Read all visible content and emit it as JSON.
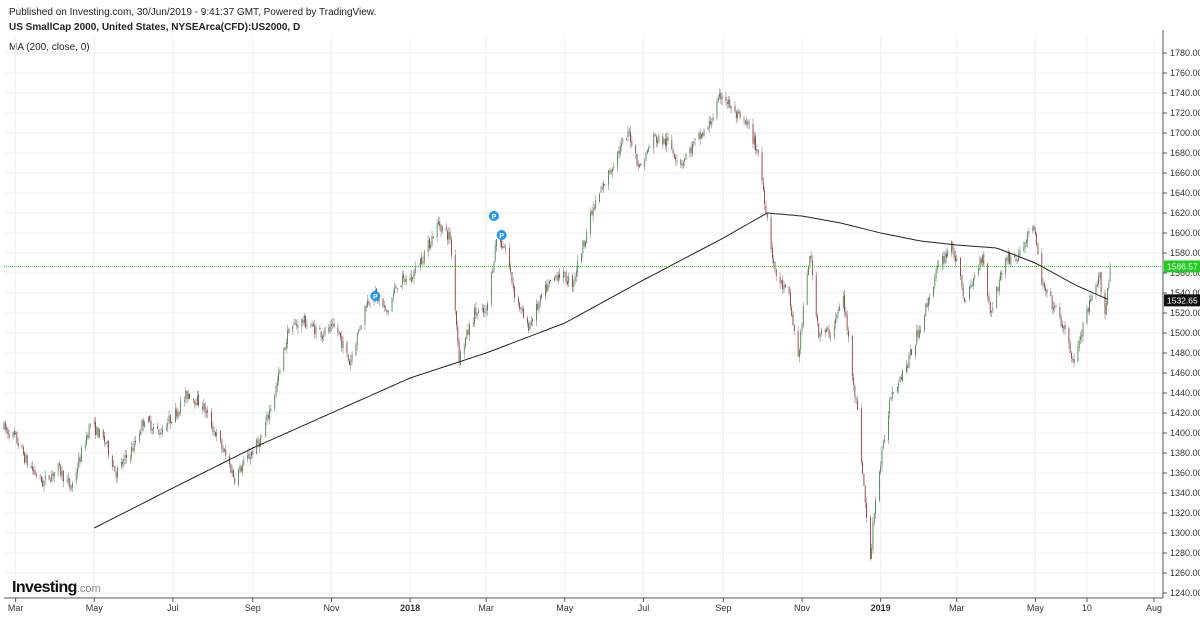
{
  "header": {
    "published": "Published on Investing.com, 30/Jun/2019 - 9:41:37 GMT, Powered by TradingView.",
    "symbol": "US SmallCap 2000, United States, NYSEArca(CFD):US2000, D",
    "indicator": "MA (200, close, 0)"
  },
  "logo": {
    "main": "Investing",
    "suffix": ".com"
  },
  "colors": {
    "up": "#2e7d32",
    "down": "#8b1a1a",
    "ma": "#222222",
    "last_price": "#22cc22",
    "ma_label_bg": "#111111",
    "marker": "#2196f3",
    "grid": "#efefef"
  },
  "chart_data": {
    "type": "candlestick",
    "title": "US SmallCap 2000, United States, NYSEArca(CFD):US2000, D",
    "indicator_name": "MA (200, close, 0)",
    "x_tick_labels": [
      "Mar",
      "May",
      "Jul",
      "Sep",
      "Nov",
      "2018",
      "Mar",
      "May",
      "Jul",
      "Sep",
      "Nov",
      "2019",
      "Mar",
      "May",
      "10",
      "Aug"
    ],
    "y_ticks": [
      1240,
      1260,
      1280,
      1300,
      1320,
      1340,
      1360,
      1380,
      1400,
      1420,
      1440,
      1460,
      1480,
      1500,
      1520,
      1540,
      1560,
      1580,
      1600,
      1620,
      1640,
      1660,
      1680,
      1700,
      1720,
      1740,
      1760,
      1780
    ],
    "ylim": [
      1235,
      1795
    ],
    "grid": true,
    "last_price": 1566.57,
    "last_price_label": "1566.57",
    "ma_last": 1532.65,
    "ma_last_label": "1532.65",
    "price_path": [
      [
        "2017-02-20",
        1405
      ],
      [
        "2017-03-01",
        1395
      ],
      [
        "2017-03-10",
        1370
      ],
      [
        "2017-03-22",
        1350
      ],
      [
        "2017-04-03",
        1365
      ],
      [
        "2017-04-13",
        1345
      ],
      [
        "2017-04-28",
        1410
      ],
      [
        "2017-05-10",
        1390
      ],
      [
        "2017-05-18",
        1360
      ],
      [
        "2017-05-31",
        1385
      ],
      [
        "2017-06-09",
        1415
      ],
      [
        "2017-06-20",
        1400
      ],
      [
        "2017-07-03",
        1420
      ],
      [
        "2017-07-13",
        1440
      ],
      [
        "2017-07-24",
        1428
      ],
      [
        "2017-08-10",
        1380
      ],
      [
        "2017-08-18",
        1355
      ],
      [
        "2017-08-28",
        1375
      ],
      [
        "2017-09-08",
        1395
      ],
      [
        "2017-09-20",
        1450
      ],
      [
        "2017-09-29",
        1505
      ],
      [
        "2017-10-10",
        1512
      ],
      [
        "2017-10-24",
        1500
      ],
      [
        "2017-11-05",
        1505
      ],
      [
        "2017-11-15",
        1470
      ],
      [
        "2017-11-28",
        1530
      ],
      [
        "2017-12-04",
        1540
      ],
      [
        "2017-12-14",
        1520
      ],
      [
        "2017-12-22",
        1550
      ],
      [
        "2018-01-02",
        1555
      ],
      [
        "2018-01-16",
        1590
      ],
      [
        "2018-01-23",
        1610
      ],
      [
        "2018-02-01",
        1595
      ],
      [
        "2018-02-08",
        1475
      ],
      [
        "2018-02-20",
        1520
      ],
      [
        "2018-03-01",
        1520
      ],
      [
        "2018-03-09",
        1595
      ],
      [
        "2018-03-16",
        1585
      ],
      [
        "2018-03-23",
        1540
      ],
      [
        "2018-04-02",
        1505
      ],
      [
        "2018-04-17",
        1545
      ],
      [
        "2018-04-26",
        1560
      ],
      [
        "2018-05-07",
        1550
      ],
      [
        "2018-05-22",
        1620
      ],
      [
        "2018-06-11",
        1680
      ],
      [
        "2018-06-20",
        1700
      ],
      [
        "2018-06-28",
        1665
      ],
      [
        "2018-07-09",
        1695
      ],
      [
        "2018-07-20",
        1690
      ],
      [
        "2018-07-30",
        1670
      ],
      [
        "2018-08-10",
        1690
      ],
      [
        "2018-08-20",
        1705
      ],
      [
        "2018-08-31",
        1740
      ],
      [
        "2018-09-10",
        1718
      ],
      [
        "2018-09-21",
        1705
      ],
      [
        "2018-09-28",
        1680
      ],
      [
        "2018-10-11",
        1560
      ],
      [
        "2018-10-22",
        1535
      ],
      [
        "2018-10-29",
        1475
      ],
      [
        "2018-11-07",
        1580
      ],
      [
        "2018-11-14",
        1500
      ],
      [
        "2018-11-23",
        1500
      ],
      [
        "2018-12-03",
        1535
      ],
      [
        "2018-12-14",
        1420
      ],
      [
        "2018-12-24",
        1270
      ],
      [
        "2018-12-27",
        1325
      ],
      [
        "2019-01-09",
        1440
      ],
      [
        "2019-01-22",
        1470
      ],
      [
        "2019-02-04",
        1520
      ],
      [
        "2019-02-13",
        1560
      ],
      [
        "2019-02-25",
        1590
      ],
      [
        "2019-03-08",
        1530
      ],
      [
        "2019-03-21",
        1580
      ],
      [
        "2019-03-27",
        1520
      ],
      [
        "2019-04-08",
        1575
      ],
      [
        "2019-04-18",
        1575
      ],
      [
        "2019-04-29",
        1610
      ],
      [
        "2019-05-07",
        1545
      ],
      [
        "2019-05-20",
        1515
      ],
      [
        "2019-05-31",
        1470
      ],
      [
        "2019-06-10",
        1520
      ],
      [
        "2019-06-20",
        1555
      ],
      [
        "2019-06-24",
        1520
      ],
      [
        "2019-06-28",
        1566.57
      ]
    ],
    "ma_path": [
      [
        "2017-05-01",
        1305
      ],
      [
        "2017-07-01",
        1345
      ],
      [
        "2017-09-01",
        1385
      ],
      [
        "2017-11-01",
        1420
      ],
      [
        "2018-01-01",
        1455
      ],
      [
        "2018-03-01",
        1480
      ],
      [
        "2018-05-01",
        1510
      ],
      [
        "2018-07-01",
        1553
      ],
      [
        "2018-09-01",
        1595
      ],
      [
        "2018-10-05",
        1620
      ],
      [
        "2018-11-01",
        1617
      ],
      [
        "2018-12-01",
        1610
      ],
      [
        "2019-01-01",
        1600
      ],
      [
        "2019-02-01",
        1592
      ],
      [
        "2019-03-01",
        1588
      ],
      [
        "2019-04-01",
        1585
      ],
      [
        "2019-05-01",
        1570
      ],
      [
        "2019-06-01",
        1548
      ],
      [
        "2019-06-28",
        1532.65
      ]
    ],
    "event_markers": [
      {
        "date": "2017-12-05",
        "price": 1537,
        "label": "P"
      },
      {
        "date": "2018-03-07",
        "price": 1617,
        "label": "P"
      },
      {
        "date": "2018-03-13",
        "price": 1598,
        "label": "P"
      }
    ]
  }
}
